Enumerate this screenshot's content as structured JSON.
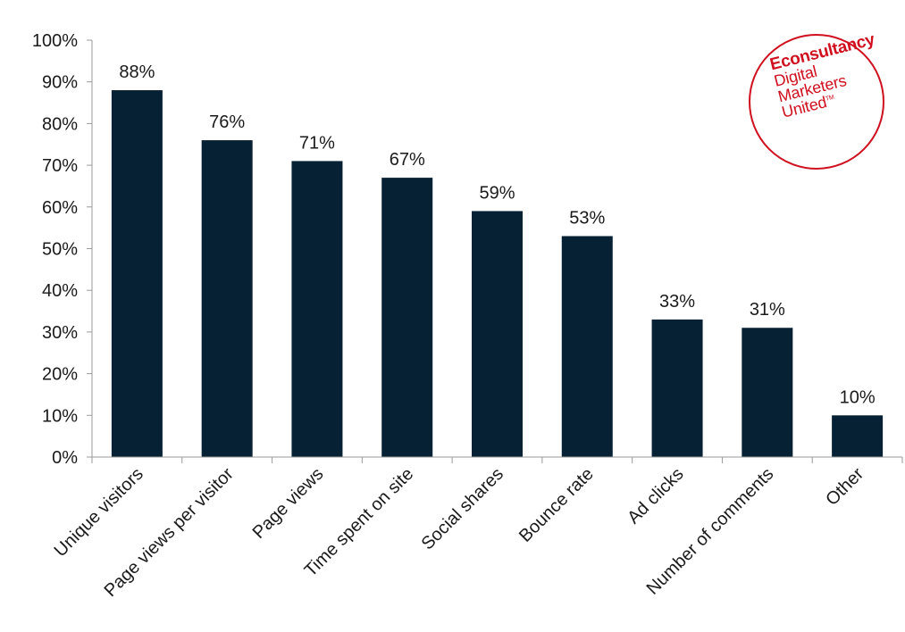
{
  "chart_data": {
    "type": "bar",
    "categories": [
      "Unique visitors",
      "Page views per visitor",
      "Page views",
      "Time spent on site",
      "Social shares",
      "Bounce rate",
      "Ad clicks",
      "Number of comments",
      "Other"
    ],
    "values": [
      88,
      76,
      71,
      67,
      59,
      53,
      33,
      31,
      10
    ],
    "data_labels": [
      "88%",
      "76%",
      "71%",
      "67%",
      "59%",
      "53%",
      "33%",
      "31%",
      "10%"
    ],
    "title": "",
    "xlabel": "",
    "ylabel": "",
    "ylim": [
      0,
      100
    ],
    "yticks": [
      0,
      10,
      20,
      30,
      40,
      50,
      60,
      70,
      80,
      90,
      100
    ],
    "ytick_labels": [
      "0%",
      "10%",
      "20%",
      "30%",
      "40%",
      "50%",
      "60%",
      "70%",
      "80%",
      "90%",
      "100%"
    ],
    "grid": false,
    "legend": "none",
    "bar_color": "#062133"
  },
  "logo": {
    "brand": "Econsultancy",
    "line1": "Digital",
    "line2": "Marketers",
    "line3": "United",
    "tm": "TM",
    "color": "#d0101e"
  }
}
